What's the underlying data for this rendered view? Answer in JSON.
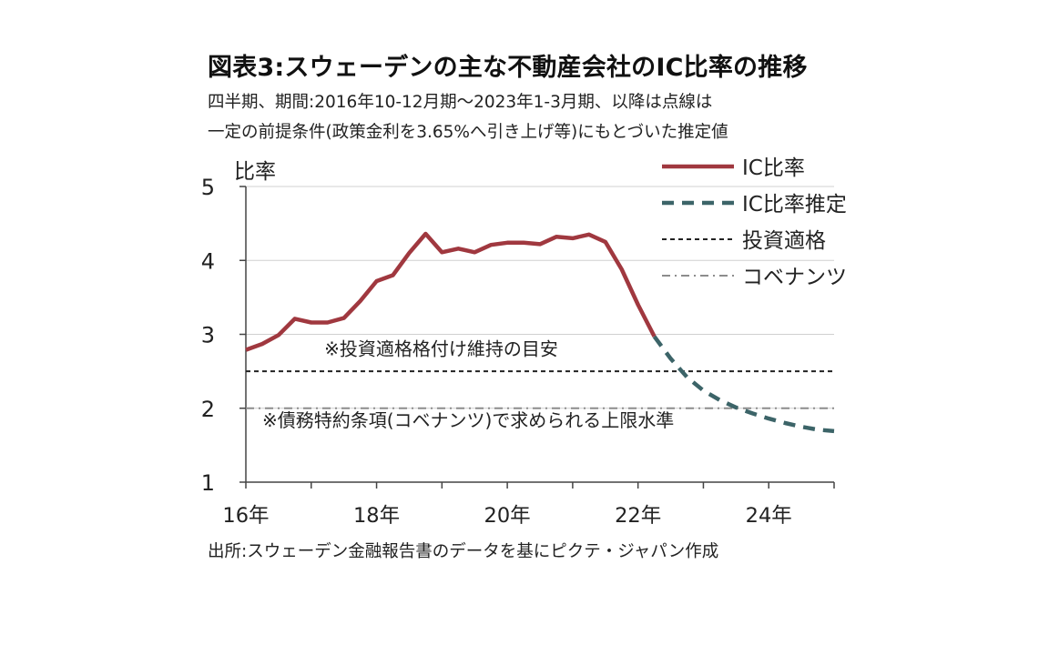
{
  "title": "図表3:スウェーデンの主な不動産会社のIC比率の推移",
  "subtitle_line1": "四半期、期間:2016年10-12月期〜2023年1-3月期、以降は点線は",
  "subtitle_line2": "一定の前提条件(政策金利を3.65%へ引き上げ等)にもとづいた推定値",
  "source": "出所:スウェーデン金融報告書のデータを基にピクテ・ジャパン作成",
  "colors": {
    "actual": "#a0383f",
    "estimate": "#3c6468",
    "investment_grade": "#222222",
    "covenant": "#8c8c8c",
    "axis": "#444444",
    "grid": "#d0d0d0"
  },
  "chart_data": {
    "type": "line",
    "ylabel": "比率",
    "xlabel": "",
    "ylim": [
      1,
      5
    ],
    "yticks": [
      "1",
      "2",
      "3",
      "4",
      "5"
    ],
    "xlim": [
      2016,
      2025
    ],
    "xticks": [
      {
        "value": 2016,
        "label": "16年"
      },
      {
        "value": 2018,
        "label": "18年"
      },
      {
        "value": 2020,
        "label": "20年"
      },
      {
        "value": 2022,
        "label": "22年"
      },
      {
        "value": 2024,
        "label": "24年"
      }
    ],
    "grid": "horizontal",
    "legend_position": "top-right",
    "series": [
      {
        "name": "IC比率",
        "style": "solid",
        "x": [
          2016.0,
          2016.25,
          2016.5,
          2016.75,
          2017.0,
          2017.25,
          2017.5,
          2017.75,
          2018.0,
          2018.25,
          2018.5,
          2018.75,
          2019.0,
          2019.25,
          2019.5,
          2019.75,
          2020.0,
          2020.25,
          2020.5,
          2020.75,
          2021.0,
          2021.25,
          2021.5,
          2021.75,
          2022.0,
          2022.25
        ],
        "y": [
          2.79,
          2.87,
          2.99,
          3.21,
          3.16,
          3.16,
          3.22,
          3.45,
          3.72,
          3.8,
          4.1,
          4.36,
          4.11,
          4.16,
          4.11,
          4.21,
          4.24,
          4.24,
          4.22,
          4.32,
          4.3,
          4.35,
          4.25,
          3.88,
          3.4,
          2.97
        ]
      },
      {
        "name": "IC比率推定",
        "style": "dashed",
        "x": [
          2022.25,
          2022.5,
          2022.75,
          2023.0,
          2023.25,
          2023.5,
          2023.75,
          2024.0,
          2024.25,
          2024.5,
          2024.75,
          2025.0
        ],
        "y": [
          2.97,
          2.67,
          2.42,
          2.24,
          2.11,
          2.01,
          1.93,
          1.86,
          1.8,
          1.75,
          1.71,
          1.69
        ]
      },
      {
        "name": "投資適格",
        "style": "dotted",
        "x": [
          2016.0,
          2025.0
        ],
        "y": [
          2.5,
          2.5
        ]
      },
      {
        "name": "コベナンツ",
        "style": "dash-dot",
        "x": [
          2016.0,
          2025.0
        ],
        "y": [
          2.0,
          2.0
        ]
      }
    ],
    "annotations": [
      {
        "text": "※投資適格格付け維持の目安",
        "x": 2017.2,
        "y": 2.72
      },
      {
        "text": "※債務特約条項(コベナンツ)で求められる上限水準",
        "x": 2016.25,
        "y": 1.75
      }
    ]
  }
}
